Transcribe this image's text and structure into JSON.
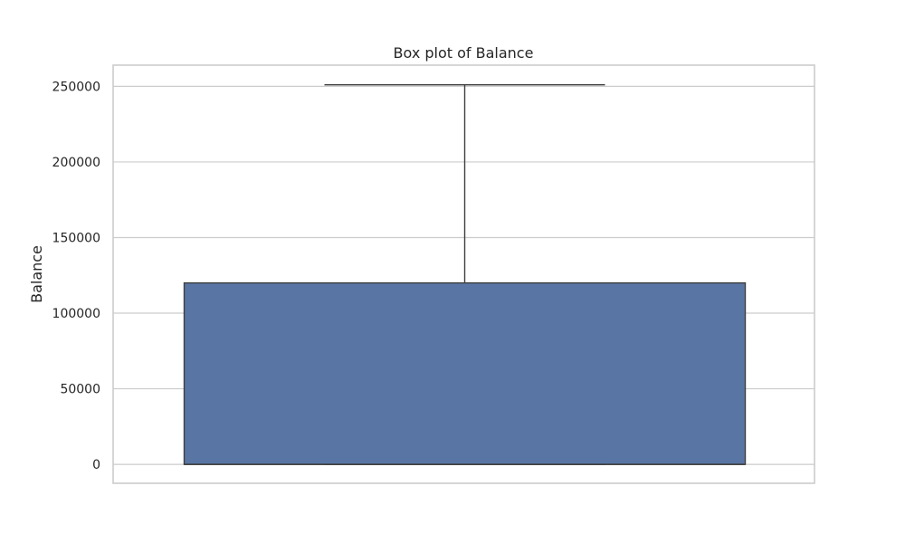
{
  "chart_data": {
    "type": "box",
    "title": "Box plot of Balance",
    "xlabel": "",
    "ylabel": "Balance",
    "ylim": [
      -12500,
      264000
    ],
    "yticks": [
      0,
      50000,
      100000,
      150000,
      200000,
      250000
    ],
    "ytick_labels": [
      "0",
      "50000",
      "100000",
      "150000",
      "200000",
      "250000"
    ],
    "grid": true,
    "box": {
      "min": 0,
      "q1": 0,
      "median": 0,
      "q3": 120000,
      "max": 251000
    },
    "colors": {
      "box_fill": "#5975a4",
      "line": "#3f3f3f",
      "grid": "#cccccc"
    }
  }
}
